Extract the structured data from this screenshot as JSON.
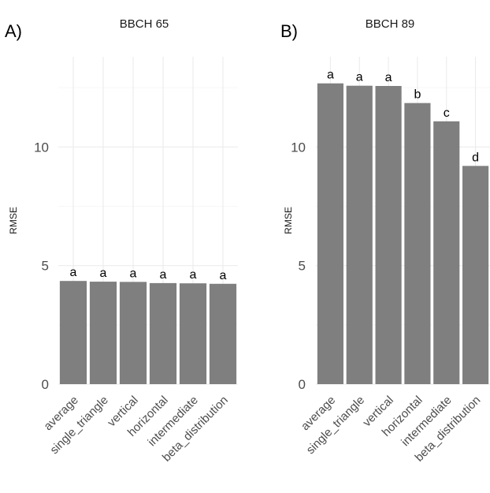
{
  "chart_data": [
    {
      "type": "bar",
      "panel_label": "A)",
      "title": "BBCH 65",
      "ylabel": "RMSE",
      "xlabel": "",
      "categories": [
        "average",
        "single_triangle",
        "vertical",
        "horizontal",
        "intermediate",
        "beta_distribution"
      ],
      "values": [
        4.35,
        4.32,
        4.31,
        4.26,
        4.25,
        4.23
      ],
      "labels": [
        "a",
        "a",
        "a",
        "a",
        "a",
        "a"
      ],
      "ylim": [
        0,
        13.8
      ],
      "yticks": [
        "0",
        "5",
        "10"
      ],
      "grid": true,
      "legend": "none",
      "bar_color": "#7f7f7f"
    },
    {
      "type": "bar",
      "panel_label": "B)",
      "title": "BBCH 89",
      "ylabel": "RMSE",
      "xlabel": "",
      "categories": [
        "average",
        "single_triangle",
        "vertical",
        "horizontal",
        "intermediate",
        "beta_distribution"
      ],
      "values": [
        12.68,
        12.58,
        12.57,
        11.85,
        11.08,
        9.2
      ],
      "labels": [
        "a",
        "a",
        "a",
        "b",
        "c",
        "d"
      ],
      "ylim": [
        0,
        13.8
      ],
      "yticks": [
        "0",
        "5",
        "10"
      ],
      "grid": true,
      "legend": "none",
      "bar_color": "#7f7f7f"
    }
  ]
}
